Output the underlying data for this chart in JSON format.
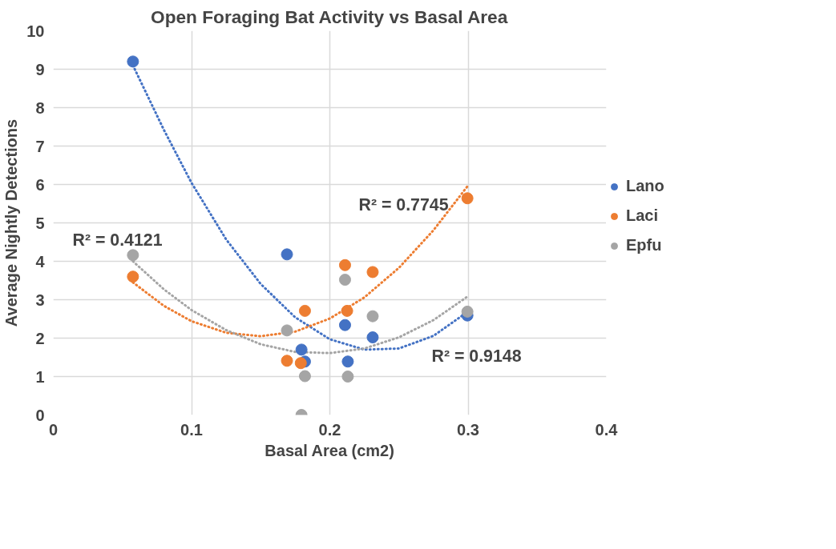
{
  "chart_data": {
    "type": "scatter",
    "title": "Open Foraging Bat Activity vs Basal Area",
    "xlabel": "Basal Area (cm2)",
    "ylabel": "Average Nightly Detections",
    "xlim": [
      0,
      0.4
    ],
    "ylim": [
      0,
      10
    ],
    "xticks": [
      0,
      0.1,
      0.2,
      0.3,
      0.4
    ],
    "yticks": [
      0,
      1,
      2,
      3,
      4,
      5,
      6,
      7,
      8,
      9,
      10
    ],
    "grid": true,
    "legend": "right",
    "series": [
      {
        "name": "Lano",
        "color": "#4472c4",
        "marker": "circle",
        "x": [
          0.0576,
          0.169,
          0.1795,
          0.182,
          0.211,
          0.213,
          0.231,
          0.2995
        ],
        "values": [
          9.2,
          4.18,
          1.7,
          1.39,
          2.34,
          1.39,
          2.02,
          2.59
        ]
      },
      {
        "name": "Laci",
        "color": "#ed7d31",
        "marker": "circle",
        "x": [
          0.0576,
          0.169,
          0.179,
          0.182,
          0.211,
          0.2125,
          0.231,
          0.2995
        ],
        "values": [
          3.6,
          1.41,
          1.35,
          2.71,
          3.9,
          2.71,
          3.72,
          5.64
        ]
      },
      {
        "name": "Epfu",
        "color": "#a5a5a5",
        "marker": "circle",
        "x": [
          0.0576,
          0.169,
          0.1795,
          0.182,
          0.211,
          0.213,
          0.231,
          0.2995
        ],
        "values": [
          4.16,
          2.2,
          0.0,
          1.01,
          3.52,
          1.0,
          2.57,
          2.69
        ]
      },
      {
        "color": "#4472c4",
        "type": "line",
        "marker": "none",
        "line_style": "dotted",
        "x": [
          0.0576,
          0.08,
          0.1,
          0.125,
          0.15,
          0.175,
          0.2,
          0.225,
          0.25,
          0.275,
          0.2995
        ],
        "values": [
          9.1,
          7.42,
          6.04,
          4.57,
          3.41,
          2.54,
          1.97,
          1.7,
          1.73,
          2.06,
          2.68
        ]
      },
      {
        "color": "#ed7d31",
        "type": "line",
        "marker": "none",
        "line_style": "dotted",
        "x": [
          0.0576,
          0.08,
          0.1,
          0.125,
          0.15,
          0.175,
          0.2,
          0.225,
          0.25,
          0.275,
          0.2995
        ],
        "values": [
          3.45,
          2.84,
          2.44,
          2.14,
          2.05,
          2.17,
          2.51,
          3.06,
          3.83,
          4.81,
          5.95
        ]
      },
      {
        "color": "#a5a5a5",
        "type": "line",
        "marker": "none",
        "line_style": "dotted",
        "x": [
          0.0576,
          0.08,
          0.1,
          0.125,
          0.15,
          0.175,
          0.2,
          0.225,
          0.25,
          0.275,
          0.2995
        ],
        "values": [
          4.0,
          3.27,
          2.73,
          2.21,
          1.84,
          1.64,
          1.61,
          1.73,
          2.02,
          2.47,
          3.08
        ]
      }
    ],
    "annotations": [
      "R² = 0.4121",
      "R² = 0.7745",
      "R² = 0.9148"
    ]
  }
}
